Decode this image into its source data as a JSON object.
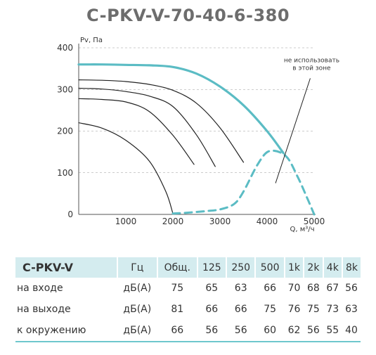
{
  "title": "C-PKV-V-70-40-6-380",
  "chart_data": {
    "type": "line",
    "title": "C-PKV-V-70-40-6-380",
    "ylabel": "Pv, Па",
    "xlabel": "Q, м³/ч",
    "xlim": [
      0,
      5000
    ],
    "ylim": [
      0,
      400
    ],
    "x_ticks": [
      "1000",
      "2000",
      "3000",
      "4000",
      "5000"
    ],
    "y_ticks": [
      "0",
      "100",
      "200",
      "300",
      "400"
    ],
    "x_tick_values": [
      1000,
      2000,
      3000,
      4000,
      5000
    ],
    "y_tick_values": [
      0,
      100,
      200,
      300,
      400
    ],
    "grid": "horizontal dashed",
    "colors": {
      "main": "#5bbcc4",
      "curves": "#222222",
      "axis": "#555555"
    },
    "series": [
      {
        "role": "max-curve",
        "style": "solid-teal",
        "x": [
          0,
          500,
          1000,
          1500,
          2000,
          2500,
          3000,
          3500,
          4000,
          4350
        ],
        "y": [
          360,
          360,
          359,
          358,
          354,
          338,
          307,
          262,
          200,
          147
        ]
      },
      {
        "role": "speed-curve-1",
        "style": "black",
        "x": [
          0,
          500,
          1000,
          1500,
          2000,
          2500,
          3000,
          3500
        ],
        "y": [
          323,
          322,
          319,
          312,
          298,
          267,
          208,
          125
        ]
      },
      {
        "role": "speed-curve-2",
        "style": "black",
        "x": [
          0,
          500,
          1000,
          1500,
          2000,
          2500,
          2900
        ],
        "y": [
          303,
          301,
          295,
          284,
          259,
          191,
          115
        ]
      },
      {
        "role": "speed-curve-3",
        "style": "black",
        "x": [
          0,
          500,
          1000,
          1500,
          2000,
          2450
        ],
        "y": [
          278,
          276,
          270,
          247,
          190,
          120
        ]
      },
      {
        "role": "speed-curve-4",
        "style": "black",
        "x": [
          0,
          500,
          1000,
          1500,
          1850,
          2000
        ],
        "y": [
          220,
          207,
          178,
          128,
          55,
          2
        ]
      },
      {
        "role": "limit-curve",
        "style": "dashed-teal",
        "x": [
          2000,
          2300,
          2700,
          3000,
          3300,
          3500,
          3800,
          4050,
          4400,
          4650,
          4850,
          5000
        ],
        "y": [
          2,
          4,
          8,
          12,
          25,
          55,
          120,
          152,
          140,
          90,
          40,
          0
        ]
      }
    ],
    "annotations": [
      {
        "text_lines": [
          "не использовать",
          "в этой зоне"
        ],
        "arrow_from": [
          4350,
          320
        ],
        "arrow_to": [
          4180,
          75
        ]
      }
    ]
  },
  "noise_table": {
    "headers": [
      "C-PKV-V",
      "Гц",
      "Общ.",
      "125",
      "250",
      "500",
      "1k",
      "2k",
      "4k",
      "8k"
    ],
    "rows": [
      [
        "на входе",
        "дБ(А)",
        "75",
        "65",
        "63",
        "66",
        "70",
        "68",
        "67",
        "56"
      ],
      [
        "на выходе",
        "дБ(А)",
        "81",
        "66",
        "66",
        "75",
        "76",
        "75",
        "73",
        "63"
      ],
      [
        "к окружению",
        "дБ(А)",
        "66",
        "56",
        "56",
        "60",
        "62",
        "56",
        "55",
        "40"
      ]
    ]
  }
}
